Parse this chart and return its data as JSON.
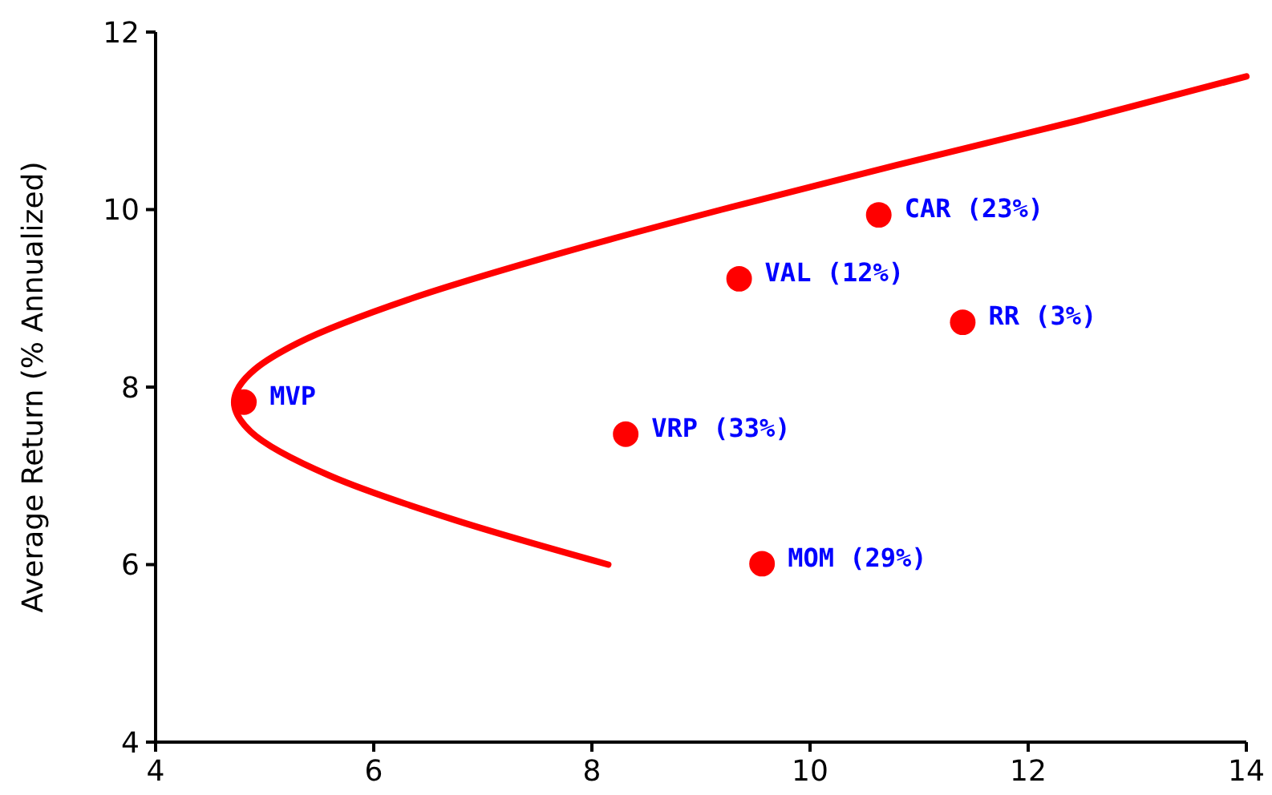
{
  "chart_data": {
    "type": "scatter",
    "ylabel": "Average Return (% Annualized)",
    "xlim": [
      4,
      14
    ],
    "ylim": [
      4,
      12
    ],
    "xticks": [
      4,
      6,
      8,
      10,
      12,
      14
    ],
    "yticks": [
      4,
      6,
      8,
      10,
      12
    ],
    "grid": false,
    "series": [
      {
        "type": "line",
        "color": "#ff0000",
        "marker": "none",
        "line_style": "solid",
        "x": [
          8.15,
          6.75,
          5.6,
          4.87,
          4.72,
          4.91,
          5.31,
          6.35,
          7.69,
          9.19,
          10.79,
          12.45,
          14
        ],
        "values": [
          6.0,
          6.5,
          7.0,
          7.5,
          7.83,
          8.2,
          8.5,
          9.0,
          9.5,
          10.0,
          10.5,
          11.0,
          11.5
        ]
      },
      {
        "color": "#ff0000",
        "marker": "circle",
        "x": [
          4.81,
          8.31,
          9.35,
          10.63,
          11.4,
          9.56
        ],
        "values": [
          7.83,
          7.47,
          9.22,
          9.94,
          8.73,
          6.01
        ]
      }
    ],
    "annotations": [
      {
        "text": "MVP",
        "x": 4.81,
        "y": 7.83
      },
      {
        "text": "VRP (33%)",
        "x": 8.31,
        "y": 7.47
      },
      {
        "text": "VAL (12%)",
        "x": 9.35,
        "y": 9.22
      },
      {
        "text": "CAR (23%)",
        "x": 10.63,
        "y": 9.94
      },
      {
        "text": "RR (3%)",
        "x": 11.4,
        "y": 8.73
      },
      {
        "text": "MOM (29%)",
        "x": 9.56,
        "y": 6.01
      }
    ]
  }
}
